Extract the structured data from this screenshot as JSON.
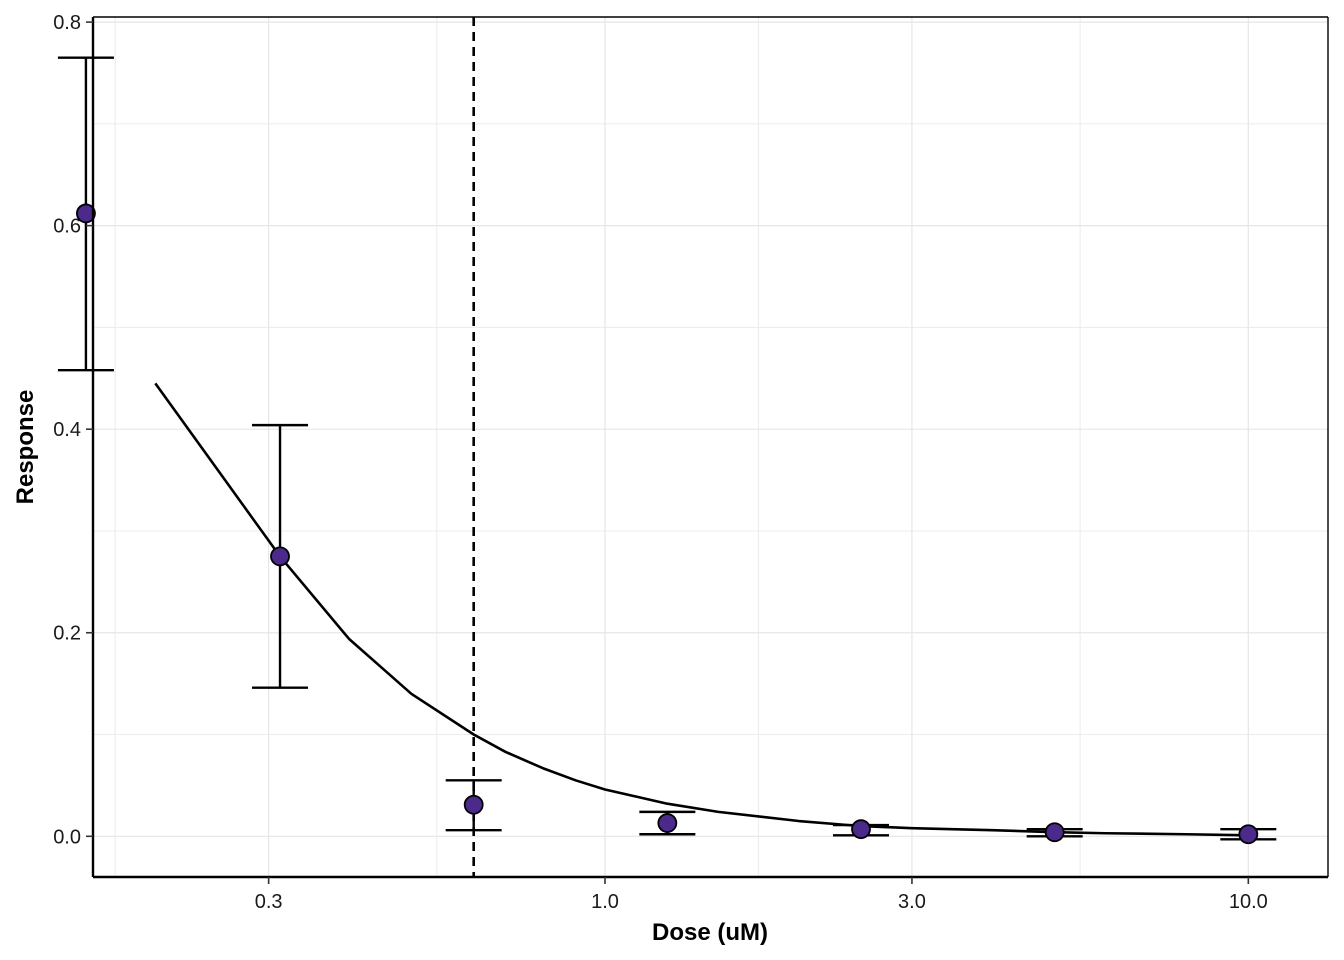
{
  "chart_data": {
    "type": "scatter",
    "title": "",
    "xlabel": "Dose (uM)",
    "ylabel": "Response",
    "x_scale": "log",
    "xlim": [
      0.16,
      13.3
    ],
    "ylim": [
      -0.04,
      0.805
    ],
    "x_ticks": [
      {
        "value": 0.3,
        "label": "0.3"
      },
      {
        "value": 1.0,
        "label": "1.0"
      },
      {
        "value": 3.0,
        "label": "3.0"
      },
      {
        "value": 10.0,
        "label": "10.0"
      }
    ],
    "y_ticks": [
      {
        "value": 0.0,
        "label": "0.0"
      },
      {
        "value": 0.2,
        "label": "0.2"
      },
      {
        "value": 0.4,
        "label": "0.4"
      },
      {
        "value": 0.6,
        "label": "0.6"
      },
      {
        "value": 0.8,
        "label": "0.8"
      }
    ],
    "grid": true,
    "points": [
      {
        "x": 0.156,
        "y": 0.612,
        "ymin": 0.458,
        "ymax": 0.765
      },
      {
        "x": 0.3125,
        "y": 0.275,
        "ymin": 0.146,
        "ymax": 0.404
      },
      {
        "x": 0.625,
        "y": 0.031,
        "ymin": 0.006,
        "ymax": 0.055
      },
      {
        "x": 1.25,
        "y": 0.013,
        "ymin": 0.002,
        "ymax": 0.024
      },
      {
        "x": 2.5,
        "y": 0.007,
        "ymin": 0.001,
        "ymax": 0.011
      },
      {
        "x": 5.0,
        "y": 0.004,
        "ymin": 0.0,
        "ymax": 0.007
      },
      {
        "x": 10.0,
        "y": 0.002,
        "ymin": -0.003,
        "ymax": 0.007
      }
    ],
    "fit_curve": {
      "x": [
        0.2,
        0.25,
        0.3125,
        0.4,
        0.5,
        0.625,
        0.7,
        0.8,
        0.9,
        1.0,
        1.25,
        1.5,
        2.0,
        2.5,
        3.0,
        4.0,
        5.0,
        6.0,
        8.0,
        10.0
      ],
      "y": [
        0.445,
        0.36,
        0.275,
        0.194,
        0.14,
        0.1,
        0.083,
        0.067,
        0.055,
        0.046,
        0.032,
        0.024,
        0.015,
        0.01,
        0.008,
        0.006,
        0.004,
        0.003,
        0.002,
        0.001
      ]
    },
    "reference_line": {
      "x": 0.625,
      "style": "dashed"
    },
    "point_color": "#4B2A8C",
    "line_color": "#000000"
  }
}
